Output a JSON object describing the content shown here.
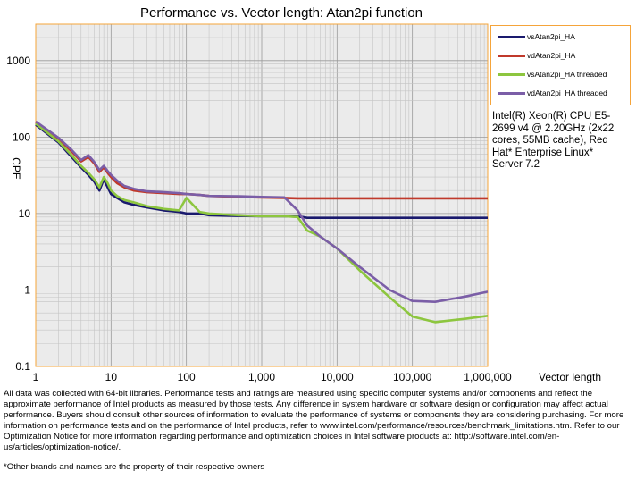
{
  "chart_data": {
    "type": "line",
    "title": "Performance vs. Vector length: Atan2pi function",
    "xlabel": "Vector length",
    "ylabel": "CPE",
    "xscale": "log",
    "yscale": "log",
    "xlim": [
      1,
      1000000
    ],
    "ylim": [
      0.1,
      3000
    ],
    "x_ticks": [
      "1",
      "10",
      "100",
      "1,000",
      "10,000",
      "100,000",
      "1,000,000"
    ],
    "y_ticks": [
      "0.1",
      "1",
      "10",
      "100",
      "1000"
    ],
    "grid": true,
    "legend_position": "right",
    "series": [
      {
        "name": "vsAtan2pi_HA",
        "color": "#1a1a6e",
        "x": [
          1,
          2,
          3,
          4,
          5,
          6,
          7,
          8,
          9,
          10,
          12,
          15,
          20,
          30,
          50,
          80,
          100,
          150,
          200,
          500,
          1000,
          2000,
          3000,
          3500,
          4000,
          10000,
          100000,
          1000000
        ],
        "y": [
          145,
          85,
          55,
          40,
          32,
          26,
          20,
          28,
          22,
          18,
          16,
          14,
          13,
          12,
          11,
          10.5,
          10,
          10,
          9.5,
          9.3,
          9.2,
          9.2,
          9.1,
          9,
          8.8,
          8.8,
          8.8,
          8.8
        ]
      },
      {
        "name": "vdAtan2pi_HA",
        "color": "#c0392b",
        "x": [
          1,
          2,
          3,
          4,
          5,
          6,
          7,
          8,
          9,
          10,
          12,
          15,
          20,
          30,
          50,
          80,
          100,
          150,
          200,
          500,
          1000,
          2000,
          3000,
          10000,
          100000,
          1000000
        ],
        "y": [
          155,
          95,
          65,
          48,
          55,
          45,
          35,
          40,
          34,
          30,
          25,
          22,
          20,
          19,
          18.5,
          18,
          18,
          17.5,
          17,
          16.5,
          16.2,
          16,
          15.8,
          15.8,
          15.8,
          15.8
        ]
      },
      {
        "name": "vsAtan2pi_HA threaded",
        "color": "#8dc63f",
        "x": [
          1,
          2,
          3,
          4,
          5,
          6,
          7,
          8,
          9,
          10,
          12,
          15,
          20,
          30,
          50,
          80,
          100,
          150,
          200,
          500,
          1000,
          2000,
          3000,
          4000,
          6000,
          10000,
          20000,
          50000,
          100000,
          200000,
          500000,
          1000000
        ],
        "y": [
          150,
          88,
          58,
          42,
          34,
          28,
          22,
          30,
          25,
          20,
          17,
          15,
          14,
          12.5,
          11.5,
          11,
          16,
          10.5,
          10,
          9.5,
          9.2,
          9.2,
          9,
          6,
          5,
          3.5,
          1.8,
          0.8,
          0.45,
          0.38,
          0.42,
          0.46
        ]
      },
      {
        "name": "vdAtan2pi_HA threaded",
        "color": "#7b5ea7",
        "x": [
          1,
          2,
          3,
          4,
          5,
          6,
          7,
          8,
          9,
          10,
          12,
          15,
          20,
          30,
          50,
          80,
          100,
          150,
          200,
          500,
          1000,
          2000,
          3000,
          4000,
          6000,
          10000,
          20000,
          50000,
          100000,
          200000,
          500000,
          1000000
        ],
        "y": [
          160,
          98,
          68,
          50,
          58,
          47,
          37,
          42,
          36,
          32,
          27,
          23,
          21,
          19.5,
          19,
          18.5,
          18,
          17.5,
          17,
          16.8,
          16.5,
          16.3,
          11,
          7,
          5,
          3.5,
          2.0,
          1.0,
          0.72,
          0.7,
          0.82,
          0.95
        ]
      }
    ]
  },
  "side_note": "Intel(R) Xeon(R) CPU E5-2699 v4 @ 2.20GHz (2x22 cores, 55MB cache), Red Hat* Enterprise Linux* Server 7.2",
  "disclaimer": "All data was collected with 64-bit libraries. Performance tests and ratings are measured using specific computer systems and/or components and reflect the approximate performance of Intel products as measured by those tests. Any difference in system hardware or software design or configuration may affect actual performance. Buyers should consult other sources of information to evaluate the performance of systems or components they are considering purchasing. For more information on performance tests and on the performance of Intel products, refer to www.intel.com/performance/resources/benchmark_limitations.htm. Refer to our Optimization Notice for more information regarding performance and optimization choices in Intel software products at: http://software.intel.com/en-us/articles/optimization-notice/.",
  "trademark": "*Other brands and names are the property of their respective owners"
}
